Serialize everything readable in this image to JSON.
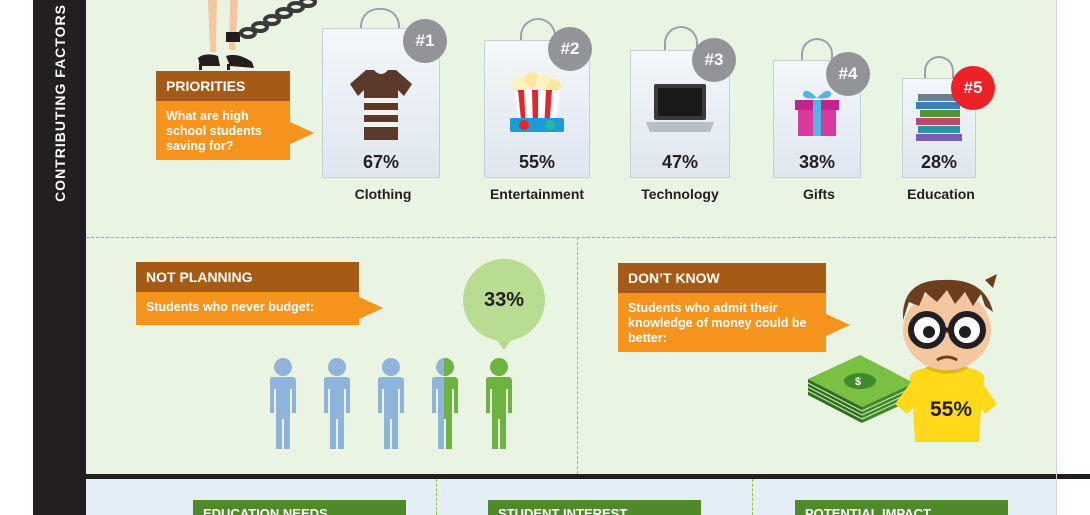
{
  "sidebar": {
    "title": "CONTRIBUTING FACTORS"
  },
  "priorities": {
    "header": "PRIORITIES",
    "question": "What are high school students saving for?",
    "items": [
      {
        "rank": "#1",
        "percent": "67%",
        "label": "Clothing",
        "icon": "tshirt-icon"
      },
      {
        "rank": "#2",
        "percent": "55%",
        "label": "Entertainment",
        "icon": "popcorn-icon"
      },
      {
        "rank": "#3",
        "percent": "47%",
        "label": "Technology",
        "icon": "laptop-icon"
      },
      {
        "rank": "#4",
        "percent": "38%",
        "label": "Gifts",
        "icon": "gift-icon"
      },
      {
        "rank": "#5",
        "percent": "28%",
        "label": "Education",
        "icon": "books-icon"
      }
    ]
  },
  "not_planning": {
    "header": "NOT PLANNING",
    "text": "Students who never budget:",
    "percent": "33%",
    "share": 0.33
  },
  "dont_know": {
    "header": "DON’T KNOW",
    "text": "Students who admit their knowledge of money could be better:",
    "percent": "55%"
  },
  "bottom_sections": [
    "EDUCATION NEEDS",
    "STUDENT INTEREST",
    "POTENTIAL IMPACT"
  ],
  "colors": {
    "panel_green": "#eaf4e2",
    "orange": "#f7941d",
    "brown": "#a55b16",
    "person_blue": "#8eb4dc",
    "person_green": "#6cb33f",
    "rank_gray": "#929497",
    "rank_red": "#ec2227"
  }
}
